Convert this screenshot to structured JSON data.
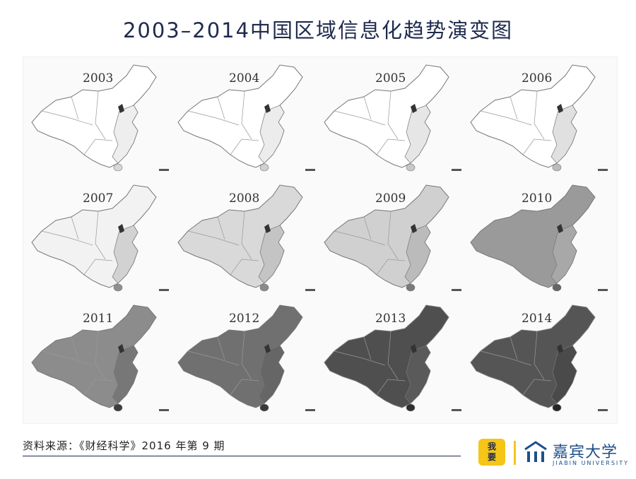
{
  "title": "2003–2014中国区域信息化趋势演变图",
  "maps": [
    {
      "year": "2003",
      "shade": "#ffffff",
      "east": "#eeeeee",
      "dark": "#d8d8d8"
    },
    {
      "year": "2004",
      "shade": "#ffffff",
      "east": "#ececec",
      "dark": "#d0d0d0"
    },
    {
      "year": "2005",
      "shade": "#ffffff",
      "east": "#e6e6e6",
      "dark": "#c8c8c8"
    },
    {
      "year": "2006",
      "shade": "#ffffff",
      "east": "#e0e0e0",
      "dark": "#bcbcbc"
    },
    {
      "year": "2007",
      "shade": "#f2f2f2",
      "east": "#d2d2d2",
      "dark": "#8f8f8f"
    },
    {
      "year": "2008",
      "shade": "#d9d9d9",
      "east": "#c4c4c4",
      "dark": "#8a8a8a"
    },
    {
      "year": "2009",
      "shade": "#d0d0d0",
      "east": "#bbbbbb",
      "dark": "#7a7a7a"
    },
    {
      "year": "2010",
      "shade": "#9a9a9a",
      "east": "#a8a8a8",
      "dark": "#666666"
    },
    {
      "year": "2011",
      "shade": "#8c8c8c",
      "east": "#777777",
      "dark": "#3e3e3e"
    },
    {
      "year": "2012",
      "shade": "#707070",
      "east": "#666666",
      "dark": "#3a3a3a"
    },
    {
      "year": "2013",
      "shade": "#4f4f4f",
      "east": "#5a5a5a",
      "dark": "#2e2e2e"
    },
    {
      "year": "2014",
      "shade": "#555555",
      "east": "#4a4a4a",
      "dark": "#262626"
    }
  ],
  "footer": {
    "source": "资料来源：《财经科学》2016 年第 9 期",
    "badge_line1": "我",
    "badge_line2": "要",
    "university_cn": "嘉宾大学",
    "university_en": "JIABIN UNIVERSITY"
  },
  "colors": {
    "brand_yellow": "#f5c518",
    "brand_blue": "#1e4f8a",
    "title_navy": "#1e2a4e"
  }
}
